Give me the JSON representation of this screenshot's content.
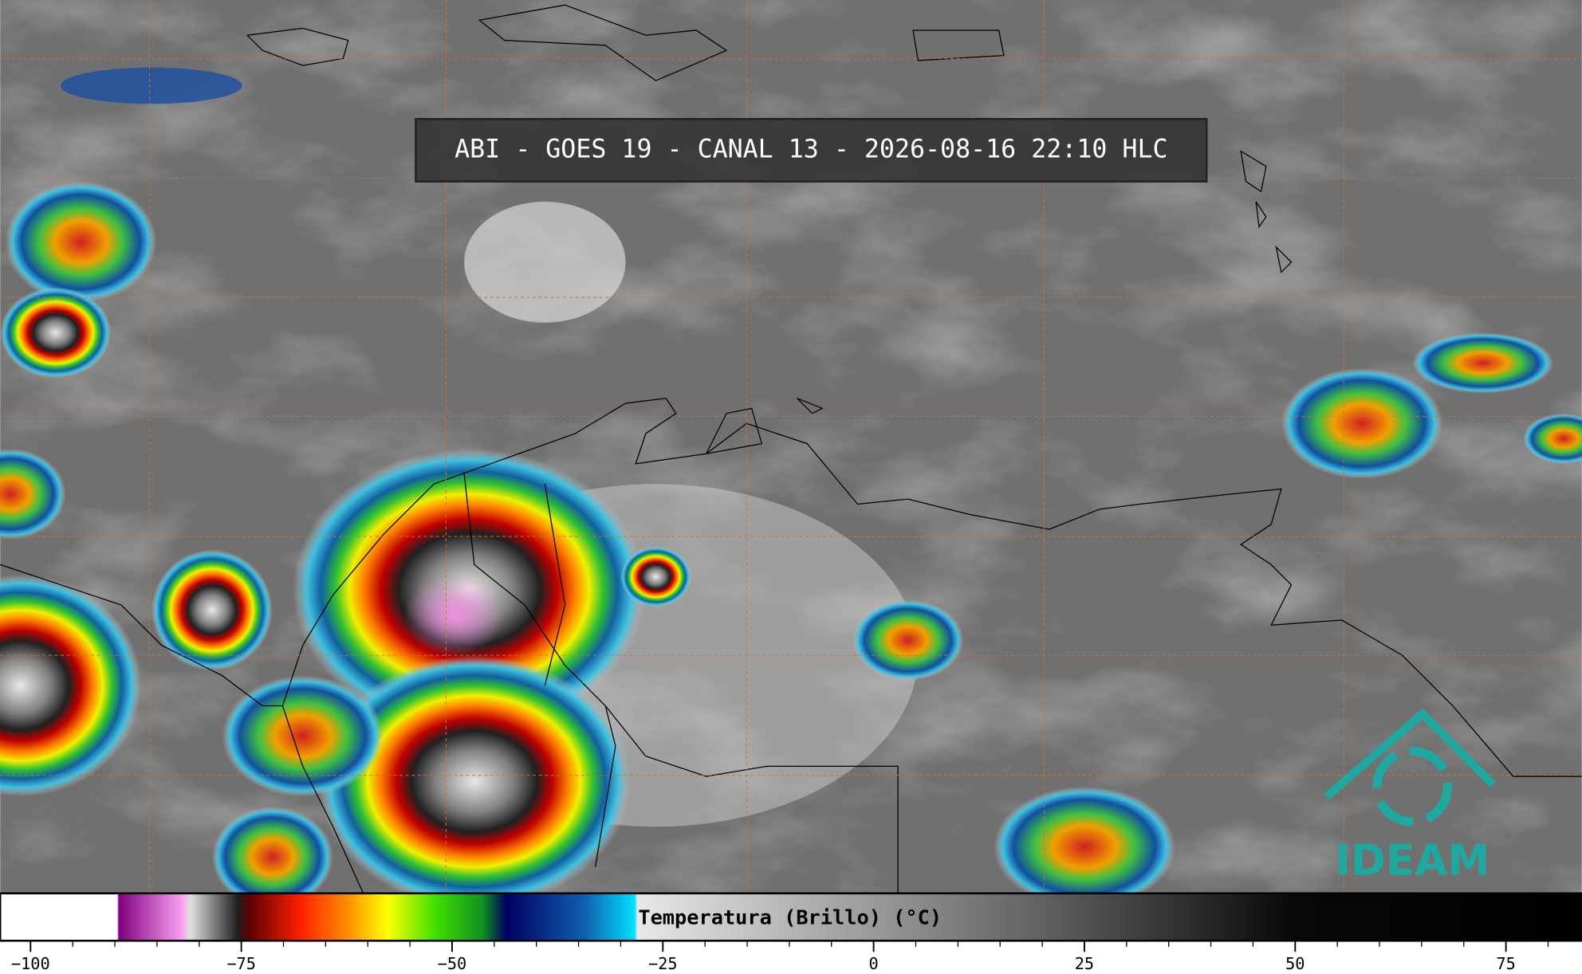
{
  "title": "ABI - GOES 19 - CANAL 13 - 2026-08-16 22:10 HLC",
  "colorbar": {
    "label": "Temperatura (Brillo) (°C)",
    "lim": [
      -103.6,
      84
    ],
    "ticks": [
      {
        "value": -100,
        "label": "−100"
      },
      {
        "value": -75,
        "label": "−75"
      },
      {
        "value": -50,
        "label": "−50"
      },
      {
        "value": -25,
        "label": "−25"
      },
      0,
      25,
      50,
      75
    ],
    "minor_step": 5
  },
  "logo": "IDEAM"
}
